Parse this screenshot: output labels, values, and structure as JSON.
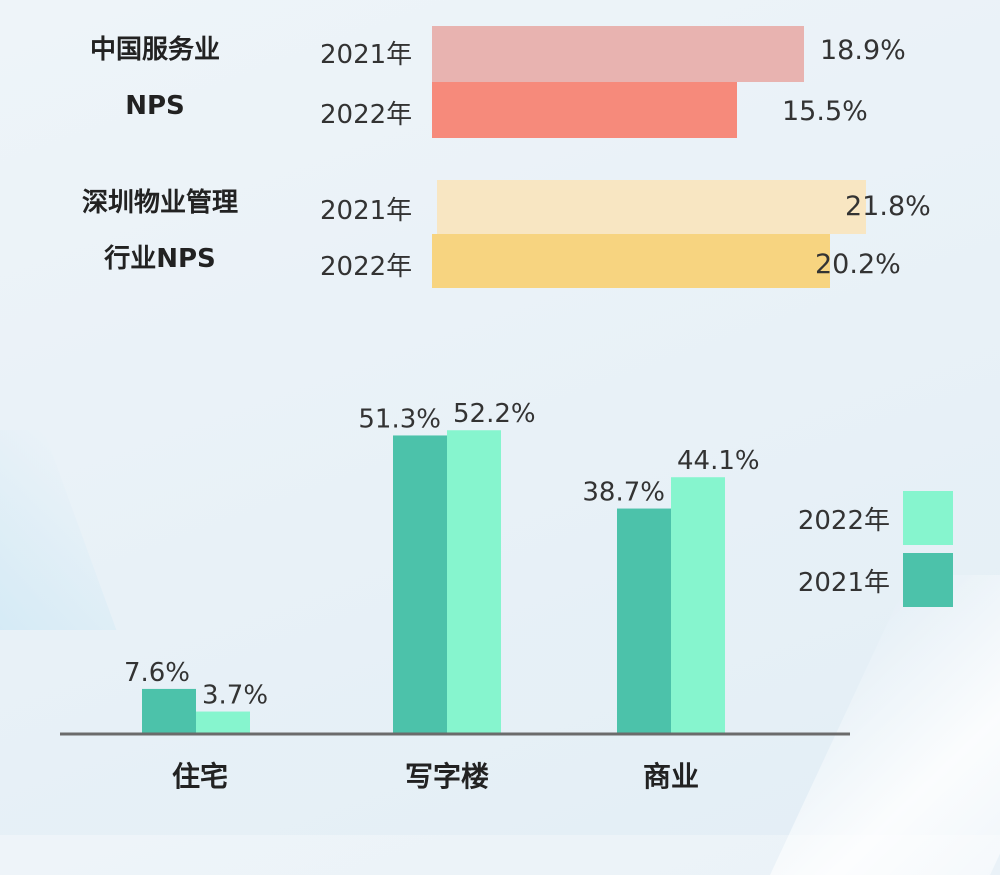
{
  "top_chart": {
    "groups": [
      {
        "label_line1": "中国服务业",
        "label_line2": "NPS",
        "rows": [
          {
            "year": "2021年",
            "value": 18.9,
            "value_label": "18.9%",
            "color": "#e8b3b0"
          },
          {
            "year": "2022年",
            "value": 15.5,
            "value_label": "15.5%",
            "color": "#f68a7b"
          }
        ]
      },
      {
        "label_line1": "深圳物业管理",
        "label_line2": "行业NPS",
        "rows": [
          {
            "year": "2021年",
            "value": 21.8,
            "value_label": "21.8%",
            "color": "#f8e6c2"
          },
          {
            "year": "2022年",
            "value": 20.2,
            "value_label": "20.2%",
            "color": "#f7d480"
          }
        ]
      }
    ]
  },
  "chart_data": {
    "type": "bar",
    "categories": [
      "住宅",
      "写字楼",
      "商业"
    ],
    "series": [
      {
        "name": "2021年",
        "values": [
          7.6,
          51.3,
          38.7
        ],
        "labels": [
          "7.6%",
          "51.3%",
          "38.7%"
        ],
        "color": "#4cc2aa"
      },
      {
        "name": "2022年",
        "values": [
          3.7,
          52.2,
          44.1
        ],
        "labels": [
          "3.7%",
          "52.2%",
          "44.1%"
        ],
        "color": "#86f5ce"
      }
    ],
    "legend": [
      {
        "name": "2022年",
        "color": "#86f5ce"
      },
      {
        "name": "2021年",
        "color": "#4cc2aa"
      }
    ],
    "legend_position": "right"
  }
}
